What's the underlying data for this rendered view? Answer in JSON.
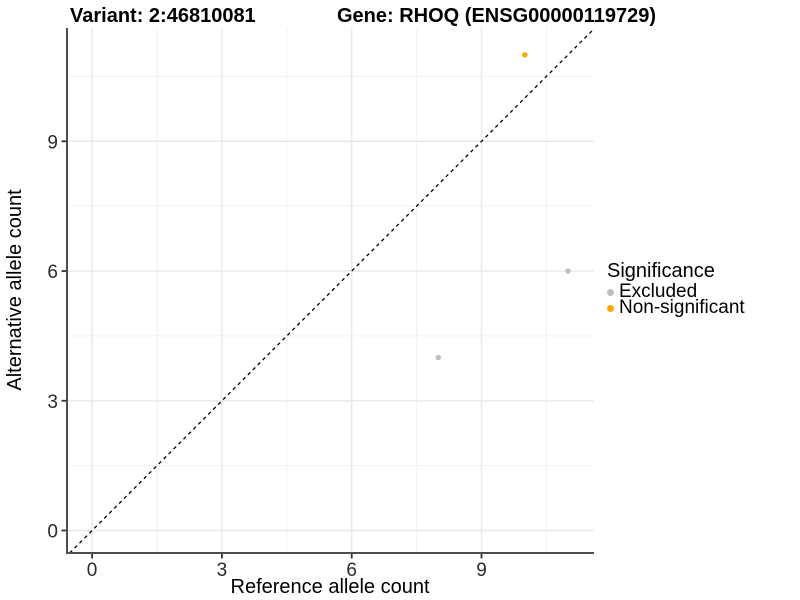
{
  "chart_data": {
    "type": "scatter",
    "title_left": "Variant: 2:46810081",
    "title_right": "Gene: RHOQ (ENSG00000119729)",
    "xlabel": "Reference allele count",
    "ylabel": "Alternative allele count",
    "xlim": [
      -0.58,
      11.6
    ],
    "ylim": [
      -0.52,
      11.62
    ],
    "xticks": [
      0,
      3,
      6,
      9
    ],
    "yticks": [
      0,
      3,
      6,
      9
    ],
    "minor_xticks": [
      1.5,
      4.5,
      7.5,
      10.5
    ],
    "minor_yticks": [
      1.5,
      4.5,
      7.5,
      10.5
    ],
    "grid": true,
    "identity_line": {
      "style": "dashed",
      "color": "#000000"
    },
    "series": [
      {
        "name": "Excluded",
        "color": "#BEBEBE",
        "points": [
          [
            11,
            6
          ],
          [
            8,
            4
          ]
        ]
      },
      {
        "name": "Non-significant",
        "color": "#FFA500",
        "points": [
          [
            10,
            11
          ]
        ]
      }
    ],
    "legend": {
      "title": "Significance",
      "position": "right"
    }
  },
  "colors": {
    "grid_major": "#E8E8E8",
    "grid_minor": "#F2F2F2",
    "axis_line": "#4D4D4D",
    "tick_mark": "#333333",
    "tick_label": "#2B2B2B"
  }
}
